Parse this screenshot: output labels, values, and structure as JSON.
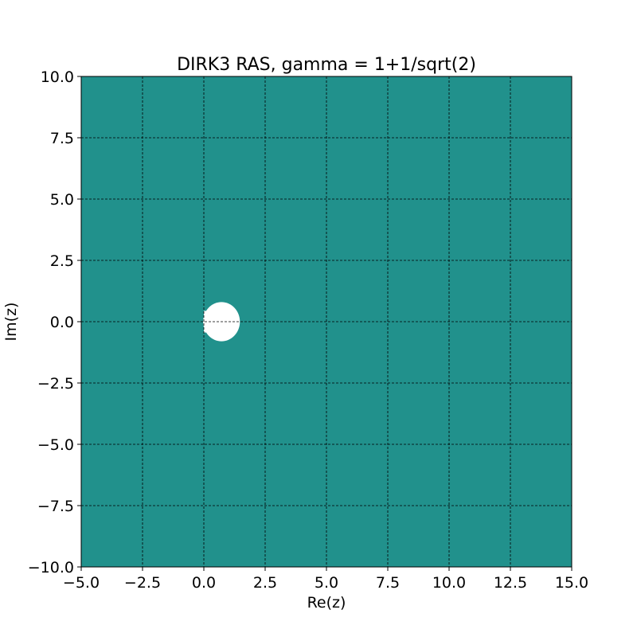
{
  "chart_data": {
    "type": "heatmap",
    "title": "DIRK3 RAS, gamma = 1+1/sqrt(2)",
    "xlabel": "Re(z)",
    "ylabel": "Im(z)",
    "xlim": [
      -5,
      15
    ],
    "ylim": [
      -10,
      10
    ],
    "x_ticks": [
      -5.0,
      -2.5,
      0.0,
      2.5,
      5.0,
      7.5,
      10.0,
      12.5,
      15.0
    ],
    "y_ticks": [
      -10.0,
      -7.5,
      -5.0,
      -2.5,
      0.0,
      2.5,
      5.0,
      7.5,
      10.0
    ],
    "x_tick_labels": [
      "−5.0",
      "−2.5",
      "0.0",
      "2.5",
      "5.0",
      "7.5",
      "10.0",
      "12.5",
      "15.0"
    ],
    "y_tick_labels": [
      "−10.0",
      "−7.5",
      "−5.0",
      "−2.5",
      "0.0",
      "2.5",
      "5.0",
      "7.5",
      "10.0"
    ],
    "grid": true,
    "grid_style": "dashed",
    "stable_region_color": "#21918c",
    "unstable_region_color": "#ffffff",
    "unstable_region": {
      "shape": "ellipse",
      "center": [
        0.72,
        0.0
      ],
      "re_range": [
        0.0,
        1.5
      ],
      "im_range": [
        -0.8,
        0.8
      ]
    }
  }
}
